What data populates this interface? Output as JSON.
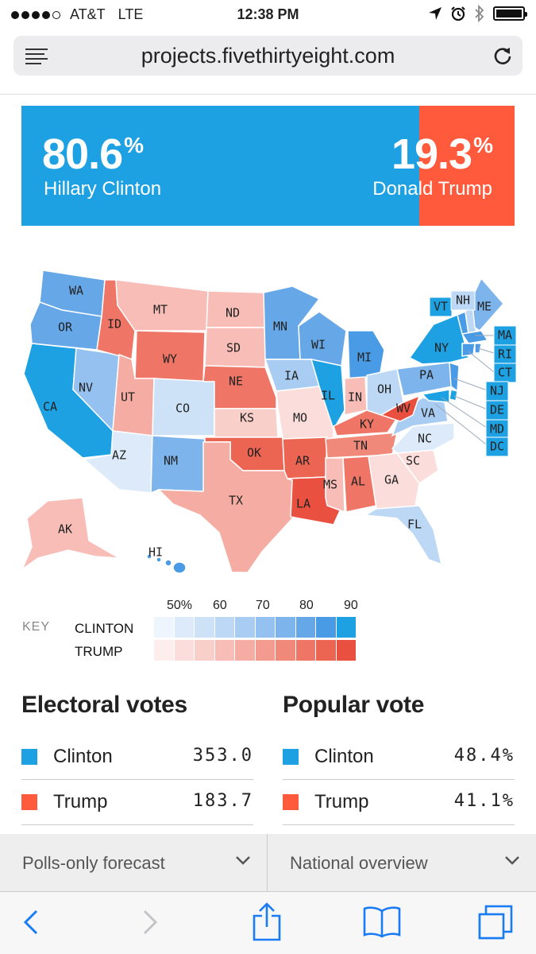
{
  "status_bar": {
    "carrier": "AT&T",
    "network": "LTE",
    "time": "12:38 PM",
    "signal_bars_filled": 4,
    "signal_bars_total": 5
  },
  "browser": {
    "url": "projects.fivethirtyeight.com"
  },
  "forecast": {
    "clinton": {
      "pct": "80.6",
      "unit": "%",
      "name": "Hillary Clinton",
      "probability": 0.806,
      "color": "#1da1e2"
    },
    "trump": {
      "pct": "19.3",
      "unit": "%",
      "name": "Donald Trump",
      "probability": 0.193,
      "color": "#ff5a3c"
    }
  },
  "map": {
    "labels": {
      "wa": "WA",
      "or": "OR",
      "ca": "CA",
      "id": "ID",
      "nv": "NV",
      "mt": "MT",
      "wy": "WY",
      "ut": "UT",
      "az": "AZ",
      "co": "CO",
      "nm": "NM",
      "nd": "ND",
      "sd": "SD",
      "ne": "NE",
      "ks": "KS",
      "ok": "OK",
      "tx": "TX",
      "mn": "MN",
      "ia": "IA",
      "mo": "MO",
      "ar": "AR",
      "la": "LA",
      "wi": "WI",
      "il": "IL",
      "mi": "MI",
      "in": "IN",
      "oh": "OH",
      "ky": "KY",
      "tn": "TN",
      "ms": "MS",
      "al": "AL",
      "ga": "GA",
      "fl": "FL",
      "sc": "SC",
      "nc": "NC",
      "va": "VA",
      "wv": "WV",
      "pa": "PA",
      "ny": "NY",
      "vt": "VT",
      "nh": "NH",
      "me": "ME",
      "ma": "MA",
      "ri": "RI",
      "ct": "CT",
      "nj": "NJ",
      "de": "DE",
      "md": "MD",
      "dc": "DC",
      "ak": "AK",
      "hi": "HI"
    }
  },
  "key": {
    "label": "KEY",
    "clinton_label": "CLINTON",
    "trump_label": "TRUMP",
    "ticks": [
      "50%",
      "60",
      "70",
      "80",
      "90"
    ],
    "clinton_colors": [
      "#eef5fc",
      "#dceaf9",
      "#cde2f7",
      "#bcd8f5",
      "#a9cdf2",
      "#94c1ef",
      "#7db4ec",
      "#66a7e8",
      "#4a9be5",
      "#1da1e2"
    ],
    "trump_colors": [
      "#fdeeed",
      "#fbdedb",
      "#f9cfca",
      "#f7bdb6",
      "#f5aca3",
      "#f39b8f",
      "#f1897b",
      "#ef7667",
      "#ec6452",
      "#ea5040"
    ]
  },
  "electoral": {
    "title": "Electoral votes",
    "clinton_label": "Clinton",
    "clinton_value": "353.0",
    "trump_label": "Trump",
    "trump_value": "183.7"
  },
  "popular": {
    "title": "Popular vote",
    "clinton_label": "Clinton",
    "clinton_value": "48.4%",
    "trump_label": "Trump",
    "trump_value": "41.1%"
  },
  "dropdowns": {
    "forecast_type": "Polls-only forecast",
    "view": "National overview"
  },
  "icons": {
    "location": "location-arrow-icon",
    "alarm": "alarm-clock-icon",
    "bluetooth": "bluetooth-icon",
    "battery": "battery-icon",
    "reader": "reader-menu-icon",
    "reload": "reload-icon",
    "back": "back-chevron-icon",
    "forward": "forward-chevron-icon",
    "share": "share-icon",
    "bookmarks": "bookmarks-icon",
    "tabs": "tabs-icon"
  }
}
